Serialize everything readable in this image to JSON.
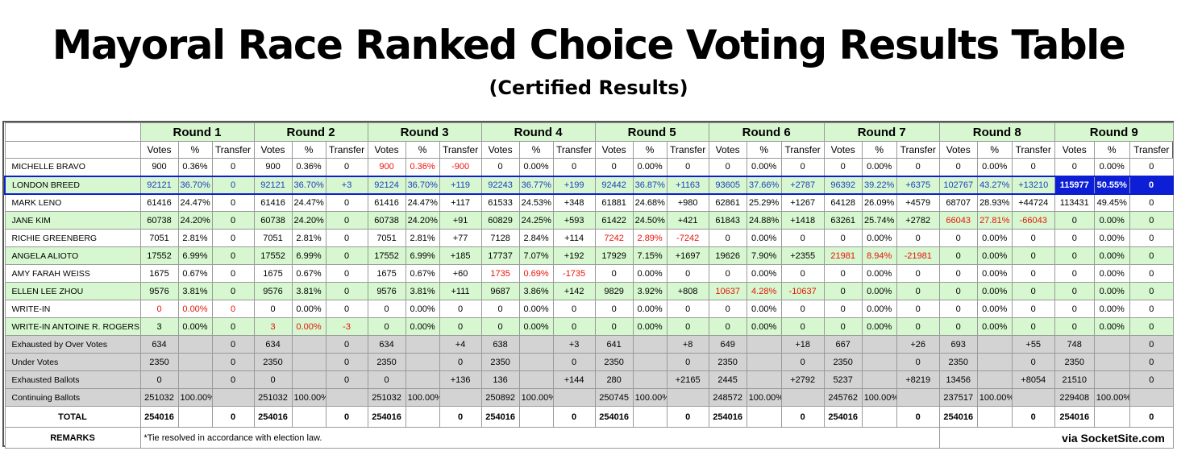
{
  "title": "Mayoral Race Ranked Choice Voting Results Table",
  "subtitle": "(Certified Results)",
  "rounds": [
    "Round 1",
    "Round 2",
    "Round 3",
    "Round 4",
    "Round 5",
    "Round 6",
    "Round 7",
    "Round 8",
    "Round 9"
  ],
  "sub_headers": [
    "Votes",
    "%",
    "Transfer"
  ],
  "colors": {
    "green_row": "#d6f7cf",
    "gray_row": "#d3d3d3",
    "red_text": "#e8140a",
    "blue_text": "#1e3fbf",
    "highlight": "#0c1fd6"
  },
  "candidates": [
    {
      "name": "MICHELLE BRAVO",
      "style": "w",
      "cells": [
        [
          "900",
          "0.36%",
          "0"
        ],
        [
          "900",
          "0.36%",
          "0"
        ],
        [
          "900",
          "0.36%",
          "-900"
        ],
        [
          "0",
          "0.00%",
          "0"
        ],
        [
          "0",
          "0.00%",
          "0"
        ],
        [
          "0",
          "0.00%",
          "0"
        ],
        [
          "0",
          "0.00%",
          "0"
        ],
        [
          "0",
          "0.00%",
          "0"
        ],
        [
          "0",
          "0.00%",
          "0"
        ]
      ],
      "red_round": 3
    },
    {
      "name": "LONDON BREED",
      "style": "winner",
      "cells": [
        [
          "92121",
          "36.70%",
          "0"
        ],
        [
          "92121",
          "36.70%",
          "+3"
        ],
        [
          "92124",
          "36.70%",
          "+119"
        ],
        [
          "92243",
          "36.77%",
          "+199"
        ],
        [
          "92442",
          "36.87%",
          "+1163"
        ],
        [
          "93605",
          "37.66%",
          "+2787"
        ],
        [
          "96392",
          "39.22%",
          "+6375"
        ],
        [
          "102767",
          "43.27%",
          "+13210"
        ],
        [
          "115977",
          "50.55%",
          "0"
        ]
      ],
      "red_round": 0
    },
    {
      "name": "MARK LENO",
      "style": "w",
      "cells": [
        [
          "61416",
          "24.47%",
          "0"
        ],
        [
          "61416",
          "24.47%",
          "0"
        ],
        [
          "61416",
          "24.47%",
          "+117"
        ],
        [
          "61533",
          "24.53%",
          "+348"
        ],
        [
          "61881",
          "24.68%",
          "+980"
        ],
        [
          "62861",
          "25.29%",
          "+1267"
        ],
        [
          "64128",
          "26.09%",
          "+4579"
        ],
        [
          "68707",
          "28.93%",
          "+44724"
        ],
        [
          "113431",
          "49.45%",
          "0"
        ]
      ],
      "red_round": 0
    },
    {
      "name": "JANE KIM",
      "style": "g",
      "cells": [
        [
          "60738",
          "24.20%",
          "0"
        ],
        [
          "60738",
          "24.20%",
          "0"
        ],
        [
          "60738",
          "24.20%",
          "+91"
        ],
        [
          "60829",
          "24.25%",
          "+593"
        ],
        [
          "61422",
          "24.50%",
          "+421"
        ],
        [
          "61843",
          "24.88%",
          "+1418"
        ],
        [
          "63261",
          "25.74%",
          "+2782"
        ],
        [
          "66043",
          "27.81%",
          "-66043"
        ],
        [
          "0",
          "0.00%",
          "0"
        ]
      ],
      "red_round": 8
    },
    {
      "name": "RICHIE GREENBERG",
      "style": "w",
      "cells": [
        [
          "7051",
          "2.81%",
          "0"
        ],
        [
          "7051",
          "2.81%",
          "0"
        ],
        [
          "7051",
          "2.81%",
          "+77"
        ],
        [
          "7128",
          "2.84%",
          "+114"
        ],
        [
          "7242",
          "2.89%",
          "-7242"
        ],
        [
          "0",
          "0.00%",
          "0"
        ],
        [
          "0",
          "0.00%",
          "0"
        ],
        [
          "0",
          "0.00%",
          "0"
        ],
        [
          "0",
          "0.00%",
          "0"
        ]
      ],
      "red_round": 5
    },
    {
      "name": "ANGELA ALIOTO",
      "style": "g",
      "cells": [
        [
          "17552",
          "6.99%",
          "0"
        ],
        [
          "17552",
          "6.99%",
          "0"
        ],
        [
          "17552",
          "6.99%",
          "+185"
        ],
        [
          "17737",
          "7.07%",
          "+192"
        ],
        [
          "17929",
          "7.15%",
          "+1697"
        ],
        [
          "19626",
          "7.90%",
          "+2355"
        ],
        [
          "21981",
          "8.94%",
          "-21981"
        ],
        [
          "0",
          "0.00%",
          "0"
        ],
        [
          "0",
          "0.00%",
          "0"
        ]
      ],
      "red_round": 7
    },
    {
      "name": "AMY FARAH WEISS",
      "style": "w",
      "cells": [
        [
          "1675",
          "0.67%",
          "0"
        ],
        [
          "1675",
          "0.67%",
          "0"
        ],
        [
          "1675",
          "0.67%",
          "+60"
        ],
        [
          "1735",
          "0.69%",
          "-1735"
        ],
        [
          "0",
          "0.00%",
          "0"
        ],
        [
          "0",
          "0.00%",
          "0"
        ],
        [
          "0",
          "0.00%",
          "0"
        ],
        [
          "0",
          "0.00%",
          "0"
        ],
        [
          "0",
          "0.00%",
          "0"
        ]
      ],
      "red_round": 4
    },
    {
      "name": "ELLEN LEE ZHOU",
      "style": "g",
      "cells": [
        [
          "9576",
          "3.81%",
          "0"
        ],
        [
          "9576",
          "3.81%",
          "0"
        ],
        [
          "9576",
          "3.81%",
          "+111"
        ],
        [
          "9687",
          "3.86%",
          "+142"
        ],
        [
          "9829",
          "3.92%",
          "+808"
        ],
        [
          "10637",
          "4.28%",
          "-10637"
        ],
        [
          "0",
          "0.00%",
          "0"
        ],
        [
          "0",
          "0.00%",
          "0"
        ],
        [
          "0",
          "0.00%",
          "0"
        ]
      ],
      "red_round": 6
    },
    {
      "name": "WRITE-IN",
      "style": "w",
      "cells": [
        [
          "0",
          "0.00%",
          "0"
        ],
        [
          "0",
          "0.00%",
          "0"
        ],
        [
          "0",
          "0.00%",
          "0"
        ],
        [
          "0",
          "0.00%",
          "0"
        ],
        [
          "0",
          "0.00%",
          "0"
        ],
        [
          "0",
          "0.00%",
          "0"
        ],
        [
          "0",
          "0.00%",
          "0"
        ],
        [
          "0",
          "0.00%",
          "0"
        ],
        [
          "0",
          "0.00%",
          "0"
        ]
      ],
      "red_round": 1
    },
    {
      "name": "WRITE-IN ANTOINE R. ROGERS",
      "style": "g",
      "cells": [
        [
          "3",
          "0.00%",
          "0"
        ],
        [
          "3",
          "0.00%",
          "-3"
        ],
        [
          "0",
          "0.00%",
          "0"
        ],
        [
          "0",
          "0.00%",
          "0"
        ],
        [
          "0",
          "0.00%",
          "0"
        ],
        [
          "0",
          "0.00%",
          "0"
        ],
        [
          "0",
          "0.00%",
          "0"
        ],
        [
          "0",
          "0.00%",
          "0"
        ],
        [
          "0",
          "0.00%",
          "0"
        ]
      ],
      "red_round": 2
    }
  ],
  "summary_rows": [
    {
      "name": "Exhausted by Over Votes",
      "cells": [
        [
          "634",
          "",
          "0"
        ],
        [
          "634",
          "",
          "0"
        ],
        [
          "634",
          "",
          "+4"
        ],
        [
          "638",
          "",
          "+3"
        ],
        [
          "641",
          "",
          "+8"
        ],
        [
          "649",
          "",
          "+18"
        ],
        [
          "667",
          "",
          "+26"
        ],
        [
          "693",
          "",
          "+55"
        ],
        [
          "748",
          "",
          "0"
        ]
      ]
    },
    {
      "name": "Under Votes",
      "cells": [
        [
          "2350",
          "",
          "0"
        ],
        [
          "2350",
          "",
          "0"
        ],
        [
          "2350",
          "",
          "0"
        ],
        [
          "2350",
          "",
          "0"
        ],
        [
          "2350",
          "",
          "0"
        ],
        [
          "2350",
          "",
          "0"
        ],
        [
          "2350",
          "",
          "0"
        ],
        [
          "2350",
          "",
          "0"
        ],
        [
          "2350",
          "",
          "0"
        ]
      ]
    },
    {
      "name": "Exhausted Ballots",
      "cells": [
        [
          "0",
          "",
          "0"
        ],
        [
          "0",
          "",
          "0"
        ],
        [
          "0",
          "",
          "+136"
        ],
        [
          "136",
          "",
          "+144"
        ],
        [
          "280",
          "",
          "+2165"
        ],
        [
          "2445",
          "",
          "+2792"
        ],
        [
          "5237",
          "",
          "+8219"
        ],
        [
          "13456",
          "",
          "+8054"
        ],
        [
          "21510",
          "",
          "0"
        ]
      ]
    },
    {
      "name": "Continuing Ballots",
      "cells": [
        [
          "251032",
          "100.00%",
          ""
        ],
        [
          "251032",
          "100.00%",
          ""
        ],
        [
          "251032",
          "100.00%",
          ""
        ],
        [
          "250892",
          "100.00%",
          ""
        ],
        [
          "250745",
          "100.00%",
          ""
        ],
        [
          "248572",
          "100.00%",
          ""
        ],
        [
          "245762",
          "100.00%",
          ""
        ],
        [
          "237517",
          "100.00%",
          ""
        ],
        [
          "229408",
          "100.00%",
          ""
        ]
      ]
    }
  ],
  "total_row": {
    "name": "TOTAL",
    "cells": [
      [
        "254016",
        "",
        "0"
      ],
      [
        "254016",
        "",
        "0"
      ],
      [
        "254016",
        "",
        "0"
      ],
      [
        "254016",
        "",
        "0"
      ],
      [
        "254016",
        "",
        "0"
      ],
      [
        "254016",
        "",
        "0"
      ],
      [
        "254016",
        "",
        "0"
      ],
      [
        "254016",
        "",
        "0"
      ],
      [
        "254016",
        "",
        "0"
      ]
    ]
  },
  "remarks": {
    "label": "REMARKS",
    "text": "*Tie resolved in accordance with election law.",
    "credit": "via SocketSite.com"
  }
}
